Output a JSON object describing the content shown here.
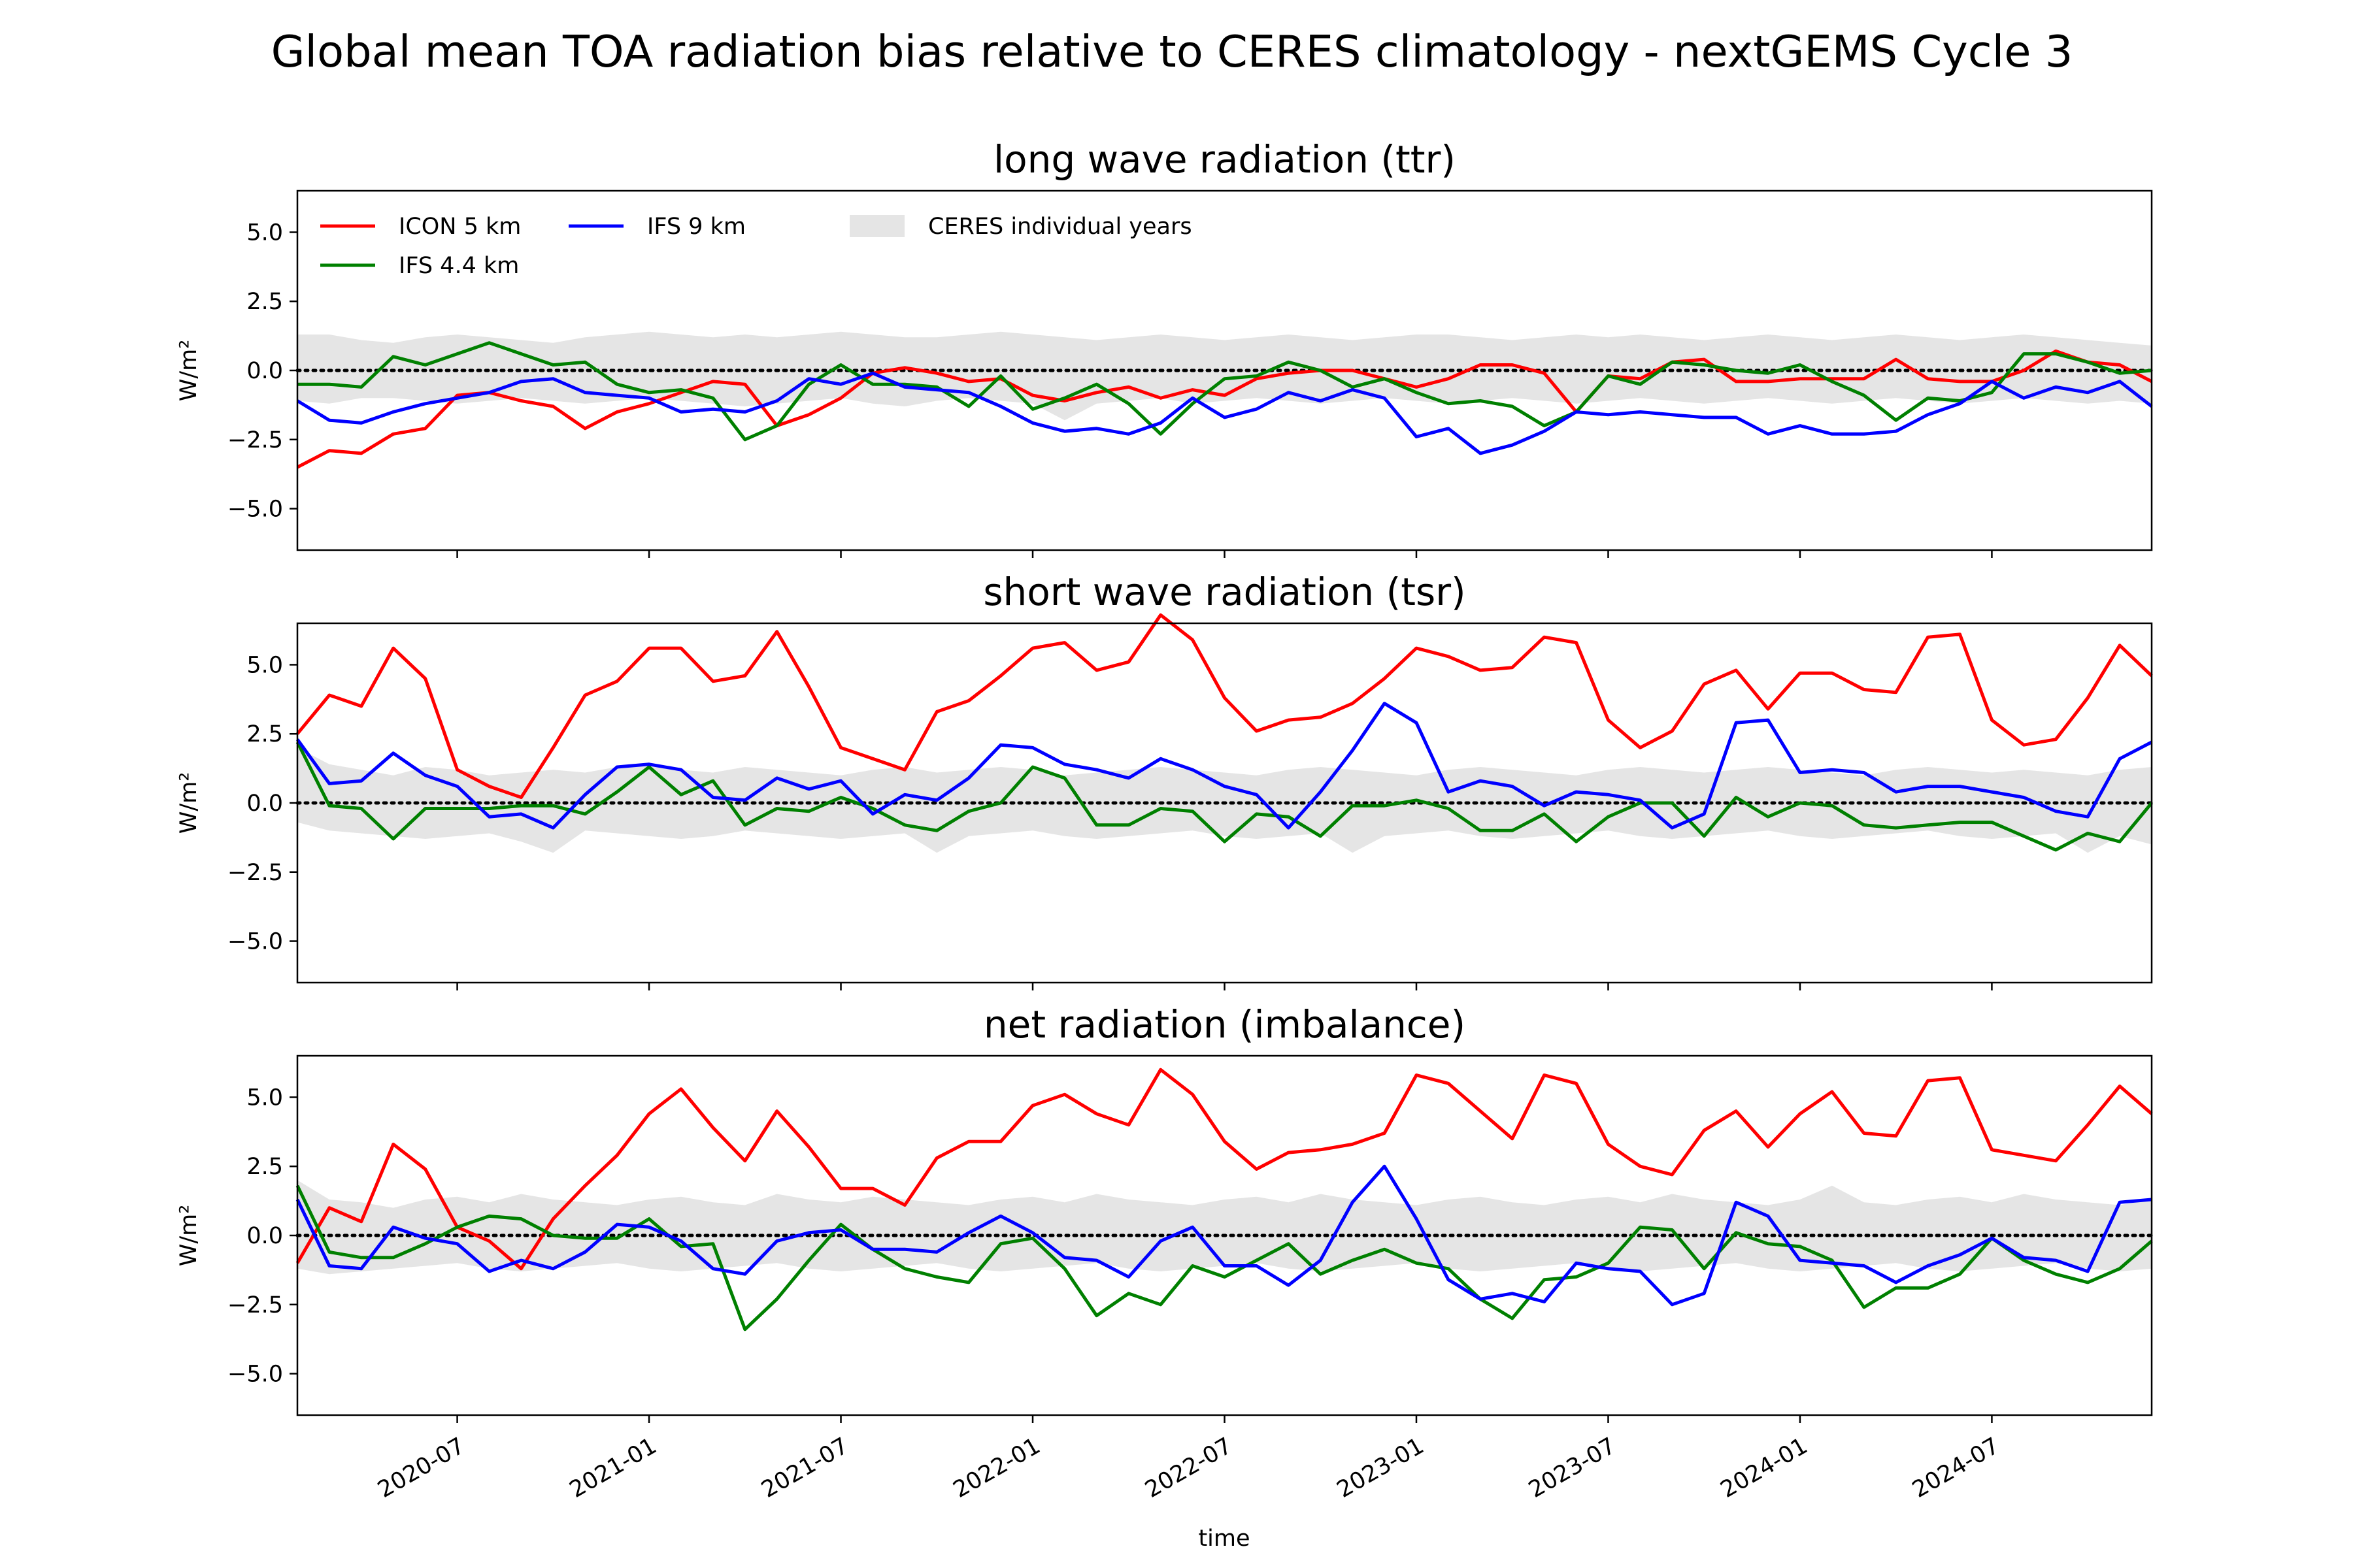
{
  "figure": {
    "suptitle": "Global mean TOA radiation bias relative to CERES climatology - nextGEMS Cycle 3",
    "xlabel": "time",
    "ylabel": "W/m²",
    "yticks": [
      "5.0",
      "2.5",
      "0.0",
      "−2.5",
      "−5.0"
    ],
    "xticks": [
      "2020-07",
      "2021-01",
      "2021-07",
      "2022-01",
      "2022-07",
      "2023-01",
      "2023-07",
      "2024-01",
      "2024-07"
    ]
  },
  "legend": [
    {
      "label": "ICON 5 km",
      "color": "#ff0000",
      "kind": "line"
    },
    {
      "label": "IFS 4.4 km",
      "color": "#008000",
      "kind": "line"
    },
    {
      "label": "IFS 9 km",
      "color": "#0000ff",
      "kind": "line"
    },
    {
      "label": "CERES individual years",
      "color": "#d3d3d3",
      "kind": "band"
    }
  ],
  "chart_data": [
    {
      "type": "line",
      "title": "long wave radiation (ttr)",
      "ylabel": "W/m²",
      "ylim": [
        -6.5,
        6.5
      ],
      "x_start": "2020-02",
      "x_end": "2024-12",
      "reference_line": 0,
      "band": {
        "name": "CERES individual years",
        "upper": [
          1.3,
          1.3,
          1.1,
          1.0,
          1.2,
          1.3,
          1.2,
          1.1,
          1.0,
          1.2,
          1.3,
          1.4,
          1.3,
          1.2,
          1.3,
          1.2,
          1.3,
          1.4,
          1.3,
          1.2,
          1.2,
          1.3,
          1.4,
          1.3,
          1.2,
          1.1,
          1.2,
          1.3,
          1.2,
          1.1,
          1.2,
          1.3,
          1.2,
          1.1,
          1.2,
          1.3,
          1.3,
          1.2,
          1.1,
          1.2,
          1.3,
          1.2,
          1.3,
          1.2,
          1.1,
          1.2,
          1.3,
          1.2,
          1.1,
          1.2,
          1.3,
          1.2,
          1.1,
          1.2,
          1.3,
          1.2,
          1.1,
          1.0,
          0.9
        ],
        "lower": [
          -1.1,
          -1.2,
          -1.0,
          -1.0,
          -1.1,
          -1.2,
          -1.1,
          -1.0,
          -1.1,
          -1.2,
          -1.1,
          -1.0,
          -1.1,
          -1.2,
          -1.3,
          -1.2,
          -1.1,
          -1.0,
          -1.2,
          -1.3,
          -1.1,
          -1.0,
          -1.1,
          -1.2,
          -1.8,
          -1.2,
          -1.1,
          -1.0,
          -1.2,
          -1.1,
          -1.0,
          -1.1,
          -1.2,
          -1.1,
          -1.0,
          -1.1,
          -1.2,
          -1.1,
          -1.0,
          -1.1,
          -1.2,
          -1.1,
          -1.0,
          -1.1,
          -1.2,
          -1.1,
          -1.0,
          -1.1,
          -1.2,
          -1.1,
          -1.0,
          -1.1,
          -1.2,
          -1.1,
          -1.0,
          -1.1,
          -1.2,
          -1.1,
          -1.2
        ]
      },
      "series": [
        {
          "name": "ICON 5 km",
          "color": "#ff0000",
          "values": [
            -3.5,
            -2.9,
            -3.0,
            -2.3,
            -2.1,
            -0.9,
            -0.8,
            -1.1,
            -1.3,
            -2.1,
            -1.5,
            -1.2,
            -0.8,
            -0.4,
            -0.5,
            -2.0,
            -1.6,
            -1.0,
            -0.1,
            0.1,
            -0.1,
            -0.4,
            -0.3,
            -0.9,
            -1.1,
            -0.8,
            -0.6,
            -1.0,
            -0.7,
            -0.9,
            -0.3,
            -0.1,
            0.0,
            0.0,
            -0.3,
            -0.6,
            -0.3,
            0.2,
            0.2,
            -0.1,
            -1.5,
            -0.2,
            -0.3,
            0.3,
            0.4,
            -0.4,
            -0.4,
            -0.3,
            -0.3,
            -0.3,
            0.4,
            -0.3,
            -0.4,
            -0.4,
            0.0,
            0.7,
            0.3,
            0.2,
            -0.4
          ]
        },
        {
          "name": "IFS 4.4 km",
          "color": "#008000",
          "values": [
            -0.5,
            -0.5,
            -0.6,
            0.5,
            0.2,
            0.6,
            1.0,
            0.6,
            0.2,
            0.3,
            -0.5,
            -0.8,
            -0.7,
            -1.0,
            -2.5,
            -2.0,
            -0.5,
            0.2,
            -0.5,
            -0.5,
            -0.6,
            -1.3,
            -0.2,
            -1.4,
            -1.0,
            -0.5,
            -1.2,
            -2.3,
            -1.2,
            -0.3,
            -0.2,
            0.3,
            0.0,
            -0.6,
            -0.3,
            -0.8,
            -1.2,
            -1.1,
            -1.3,
            -2.0,
            -1.5,
            -0.2,
            -0.5,
            0.3,
            0.2,
            0.0,
            -0.1,
            0.2,
            -0.4,
            -0.9,
            -1.8,
            -1.0,
            -1.1,
            -0.8,
            0.6,
            0.6,
            0.3,
            -0.1,
            0.0
          ]
        },
        {
          "name": "IFS 9 km",
          "color": "#0000ff",
          "values": [
            -1.1,
            -1.8,
            -1.9,
            -1.5,
            -1.2,
            -1.0,
            -0.8,
            -0.4,
            -0.3,
            -0.8,
            -0.9,
            -1.0,
            -1.5,
            -1.4,
            -1.5,
            -1.1,
            -0.3,
            -0.5,
            -0.1,
            -0.6,
            -0.7,
            -0.8,
            -1.3,
            -1.9,
            -2.2,
            -2.1,
            -2.3,
            -1.9,
            -1.0,
            -1.7,
            -1.4,
            -0.8,
            -1.1,
            -0.7,
            -1.0,
            -2.4,
            -2.1,
            -3.0,
            -2.7,
            -2.2,
            -1.5,
            -1.6,
            -1.5,
            -1.6,
            -1.7,
            -1.7,
            -2.3,
            -2.0,
            -2.3,
            -2.3,
            -2.2,
            -1.6,
            -1.2,
            -0.4,
            -1.0,
            -0.6,
            -0.8,
            -0.4,
            -1.3
          ]
        }
      ]
    },
    {
      "type": "line",
      "title": "short wave radiation (tsr)",
      "ylabel": "W/m²",
      "ylim": [
        -6.5,
        6.5
      ],
      "x_start": "2020-02",
      "x_end": "2024-12",
      "reference_line": 0,
      "band": {
        "name": "CERES individual years",
        "upper": [
          2.0,
          1.4,
          1.2,
          1.0,
          1.3,
          1.2,
          1.0,
          1.1,
          1.2,
          1.1,
          1.3,
          1.4,
          1.2,
          1.1,
          1.3,
          1.2,
          1.1,
          1.0,
          1.2,
          1.3,
          1.1,
          1.2,
          1.3,
          1.2,
          1.0,
          1.1,
          1.2,
          1.3,
          1.2,
          1.1,
          1.0,
          1.2,
          1.3,
          1.2,
          1.1,
          1.0,
          1.2,
          1.3,
          1.2,
          1.1,
          1.0,
          1.2,
          1.3,
          1.2,
          1.1,
          1.2,
          1.3,
          1.2,
          1.1,
          1.0,
          1.2,
          1.3,
          1.2,
          1.1,
          1.2,
          1.1,
          1.0,
          1.2,
          1.3
        ],
        "lower": [
          -0.7,
          -1.0,
          -1.1,
          -1.2,
          -1.3,
          -1.2,
          -1.1,
          -1.4,
          -1.8,
          -1.0,
          -1.1,
          -1.2,
          -1.3,
          -1.2,
          -1.0,
          -1.1,
          -1.2,
          -1.3,
          -1.2,
          -1.1,
          -1.8,
          -1.2,
          -1.1,
          -1.0,
          -1.2,
          -1.3,
          -1.2,
          -1.1,
          -1.0,
          -1.2,
          -1.3,
          -1.2,
          -1.1,
          -1.8,
          -1.2,
          -1.1,
          -1.0,
          -1.2,
          -1.3,
          -1.2,
          -1.1,
          -1.0,
          -1.2,
          -1.3,
          -1.2,
          -1.1,
          -1.0,
          -1.2,
          -1.3,
          -1.2,
          -1.1,
          -1.0,
          -1.2,
          -1.3,
          -1.2,
          -1.1,
          -1.8,
          -1.2,
          -1.5
        ]
      },
      "series": [
        {
          "name": "ICON 5 km",
          "color": "#ff0000",
          "values": [
            2.5,
            3.9,
            3.5,
            5.6,
            4.5,
            1.2,
            0.6,
            0.2,
            2.0,
            3.9,
            4.4,
            5.6,
            5.6,
            4.4,
            4.6,
            6.2,
            4.2,
            2.0,
            1.6,
            1.2,
            3.3,
            3.7,
            4.6,
            5.6,
            5.8,
            4.8,
            5.1,
            6.8,
            5.9,
            3.8,
            2.6,
            3.0,
            3.1,
            3.6,
            4.5,
            5.6,
            5.3,
            4.8,
            4.9,
            6.0,
            5.8,
            3.0,
            2.0,
            2.6,
            4.3,
            4.8,
            3.4,
            4.7,
            4.7,
            4.1,
            4.0,
            6.0,
            6.1,
            3.0,
            2.1,
            2.3,
            3.8,
            5.7,
            4.6
          ]
        },
        {
          "name": "IFS 4.4 km",
          "color": "#008000",
          "values": [
            2.2,
            -0.1,
            -0.2,
            -1.3,
            -0.2,
            -0.2,
            -0.2,
            -0.1,
            -0.1,
            -0.4,
            0.4,
            1.3,
            0.3,
            0.8,
            -0.8,
            -0.2,
            -0.3,
            0.2,
            -0.2,
            -0.8,
            -1.0,
            -0.3,
            0.0,
            1.3,
            0.9,
            -0.8,
            -0.8,
            -0.2,
            -0.3,
            -1.4,
            -0.4,
            -0.5,
            -1.2,
            -0.1,
            -0.1,
            0.1,
            -0.2,
            -1.0,
            -1.0,
            -0.4,
            -1.4,
            -0.5,
            0.0,
            0.0,
            -1.2,
            0.2,
            -0.5,
            0.0,
            -0.1,
            -0.8,
            -0.9,
            -0.8,
            -0.7,
            -0.7,
            -1.2,
            -1.7,
            -1.1,
            -1.4,
            0.0
          ]
        },
        {
          "name": "IFS 9 km",
          "color": "#0000ff",
          "values": [
            2.3,
            0.7,
            0.8,
            1.8,
            1.0,
            0.6,
            -0.5,
            -0.4,
            -0.9,
            0.3,
            1.3,
            1.4,
            1.2,
            0.2,
            0.1,
            0.9,
            0.5,
            0.8,
            -0.4,
            0.3,
            0.1,
            0.9,
            2.1,
            2.0,
            1.4,
            1.2,
            0.9,
            1.6,
            1.2,
            0.6,
            0.3,
            -0.9,
            0.4,
            1.9,
            3.6,
            2.9,
            0.4,
            0.8,
            0.6,
            -0.1,
            0.4,
            0.3,
            0.1,
            -0.9,
            -0.4,
            2.9,
            3.0,
            1.1,
            1.2,
            1.1,
            0.4,
            0.6,
            0.6,
            0.4,
            0.2,
            -0.3,
            -0.5,
            1.6,
            2.2
          ]
        }
      ]
    },
    {
      "type": "line",
      "title": "net radiation (imbalance)",
      "ylabel": "W/m²",
      "ylim": [
        -6.5,
        6.5
      ],
      "x_start": "2020-02",
      "x_end": "2024-12",
      "reference_line": 0,
      "band": {
        "name": "CERES individual years",
        "upper": [
          2.0,
          1.3,
          1.2,
          1.0,
          1.3,
          1.4,
          1.2,
          1.5,
          1.3,
          1.2,
          1.1,
          1.3,
          1.4,
          1.2,
          1.1,
          1.5,
          1.3,
          1.2,
          1.4,
          1.3,
          1.2,
          1.1,
          1.3,
          1.4,
          1.2,
          1.5,
          1.3,
          1.2,
          1.1,
          1.3,
          1.4,
          1.2,
          1.5,
          1.3,
          1.2,
          1.1,
          1.3,
          1.4,
          1.2,
          1.1,
          1.3,
          1.4,
          1.2,
          1.5,
          1.3,
          1.2,
          1.1,
          1.3,
          1.8,
          1.2,
          1.1,
          1.3,
          1.4,
          1.2,
          1.5,
          1.3,
          1.2,
          1.1,
          1.3
        ],
        "lower": [
          -1.2,
          -1.4,
          -1.3,
          -1.2,
          -1.1,
          -1.0,
          -1.2,
          -1.3,
          -1.2,
          -1.1,
          -1.0,
          -1.2,
          -1.3,
          -1.2,
          -1.1,
          -1.0,
          -1.2,
          -1.3,
          -1.2,
          -1.1,
          -1.0,
          -1.2,
          -1.3,
          -1.2,
          -1.1,
          -1.0,
          -1.2,
          -1.3,
          -1.2,
          -1.1,
          -1.0,
          -1.2,
          -1.3,
          -1.2,
          -1.1,
          -1.0,
          -1.2,
          -1.3,
          -1.2,
          -1.1,
          -1.0,
          -1.2,
          -1.3,
          -1.2,
          -1.1,
          -1.0,
          -1.2,
          -1.3,
          -1.2,
          -1.1,
          -1.0,
          -1.2,
          -1.3,
          -1.2,
          -1.1,
          -1.0,
          -1.2,
          -1.3,
          -1.2
        ]
      },
      "series": [
        {
          "name": "ICON 5 km",
          "color": "#ff0000",
          "values": [
            -1.0,
            1.0,
            0.5,
            3.3,
            2.4,
            0.3,
            -0.2,
            -1.2,
            0.6,
            1.8,
            2.9,
            4.4,
            5.3,
            3.9,
            2.7,
            4.5,
            3.2,
            1.7,
            1.7,
            1.1,
            2.8,
            3.4,
            3.4,
            4.7,
            5.1,
            4.4,
            4.0,
            6.0,
            5.1,
            3.4,
            2.4,
            3.0,
            3.1,
            3.3,
            3.7,
            5.8,
            5.5,
            4.5,
            3.5,
            5.8,
            5.5,
            3.3,
            2.5,
            2.2,
            3.8,
            4.5,
            3.2,
            4.4,
            5.2,
            3.7,
            3.6,
            5.6,
            5.7,
            3.1,
            2.9,
            2.7,
            4.0,
            5.4,
            4.4
          ]
        },
        {
          "name": "IFS 4.4 km",
          "color": "#008000",
          "values": [
            1.8,
            -0.6,
            -0.8,
            -0.8,
            -0.3,
            0.3,
            0.7,
            0.6,
            0.0,
            -0.1,
            -0.1,
            0.6,
            -0.4,
            -0.3,
            -3.4,
            -2.3,
            -0.9,
            0.4,
            -0.5,
            -1.2,
            -1.5,
            -1.7,
            -0.3,
            -0.1,
            -1.2,
            -2.9,
            -2.1,
            -2.5,
            -1.1,
            -1.5,
            -0.9,
            -0.3,
            -1.4,
            -0.9,
            -0.5,
            -1.0,
            -1.2,
            -2.3,
            -3.0,
            -1.6,
            -1.5,
            -1.0,
            0.3,
            0.2,
            -1.2,
            0.1,
            -0.3,
            -0.4,
            -0.9,
            -2.6,
            -1.9,
            -1.9,
            -1.4,
            -0.1,
            -0.9,
            -1.4,
            -1.7,
            -1.2,
            -0.2
          ]
        },
        {
          "name": "IFS 9 km",
          "color": "#0000ff",
          "values": [
            1.3,
            -1.1,
            -1.2,
            0.3,
            -0.1,
            -0.3,
            -1.3,
            -0.9,
            -1.2,
            -0.6,
            0.4,
            0.3,
            -0.2,
            -1.2,
            -1.4,
            -0.2,
            0.1,
            0.2,
            -0.5,
            -0.5,
            -0.6,
            0.1,
            0.7,
            0.1,
            -0.8,
            -0.9,
            -1.5,
            -0.2,
            0.3,
            -1.1,
            -1.1,
            -1.8,
            -0.9,
            1.2,
            2.5,
            0.6,
            -1.6,
            -2.3,
            -2.1,
            -2.4,
            -1.0,
            -1.2,
            -1.3,
            -2.5,
            -2.1,
            1.2,
            0.7,
            -0.9,
            -1.0,
            -1.1,
            -1.7,
            -1.1,
            -0.7,
            -0.1,
            -0.8,
            -0.9,
            -1.3,
            1.2,
            1.3
          ]
        }
      ]
    }
  ]
}
